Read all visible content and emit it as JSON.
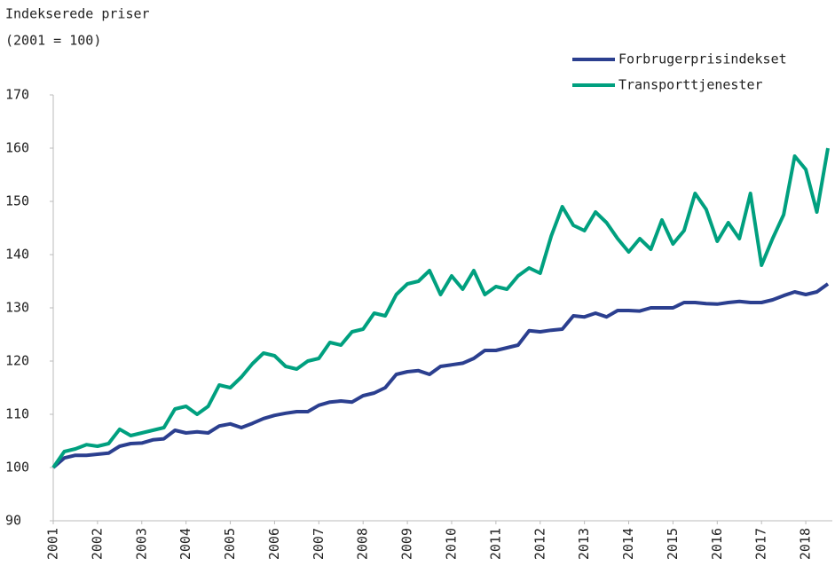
{
  "chart_data": {
    "type": "line",
    "title": "Indekserede priser",
    "subtitle": "(2001 = 100)",
    "x": [
      2001,
      2001.25,
      2001.5,
      2001.75,
      2002,
      2002.25,
      2002.5,
      2002.75,
      2003,
      2003.25,
      2003.5,
      2003.75,
      2004,
      2004.25,
      2004.5,
      2004.75,
      2005,
      2005.25,
      2005.5,
      2005.75,
      2006,
      2006.25,
      2006.5,
      2006.75,
      2007,
      2007.25,
      2007.5,
      2007.75,
      2008,
      2008.25,
      2008.5,
      2008.75,
      2009,
      2009.25,
      2009.5,
      2009.75,
      2010,
      2010.25,
      2010.5,
      2010.75,
      2011,
      2011.25,
      2011.5,
      2011.75,
      2012,
      2012.25,
      2012.5,
      2012.75,
      2013,
      2013.25,
      2013.5,
      2013.75,
      2014,
      2014.25,
      2014.5,
      2014.75,
      2015,
      2015.25,
      2015.5,
      2015.75,
      2016,
      2016.25,
      2016.5,
      2016.75,
      2017,
      2017.25,
      2017.5,
      2017.75,
      2018,
      2018.25,
      2018.5
    ],
    "series": [
      {
        "name": "Forbrugerprisindekset",
        "color": "#2b3f8f",
        "values": [
          100,
          101.8,
          102.3,
          102.3,
          102.5,
          102.7,
          104,
          104.5,
          104.6,
          105.2,
          105.4,
          107,
          106.5,
          106.7,
          106.5,
          107.8,
          108.2,
          107.5,
          108.3,
          109.2,
          109.8,
          110.2,
          110.5,
          110.5,
          111.7,
          112.3,
          112.5,
          112.3,
          113.5,
          114,
          115,
          117.5,
          118,
          118.2,
          117.5,
          119,
          119.3,
          119.6,
          120.5,
          122,
          122,
          122.5,
          123,
          125.7,
          125.5,
          125.8,
          126,
          128.5,
          128.3,
          129,
          128.3,
          129.5,
          129.5,
          129.4,
          130,
          130,
          130,
          131,
          131,
          130.8,
          130.7,
          131,
          131.2,
          131,
          131,
          131.5,
          132.3,
          133,
          132.5,
          133,
          134.5
        ]
      },
      {
        "name": "Transporttjenester",
        "color": "#00a07f",
        "values": [
          100,
          103,
          103.5,
          104.3,
          104,
          104.5,
          107.2,
          106,
          106.5,
          107,
          107.5,
          111,
          111.5,
          110,
          111.5,
          115.5,
          115,
          117,
          119.5,
          121.5,
          121,
          119,
          118.5,
          120,
          120.5,
          123.5,
          123,
          125.5,
          126,
          129,
          128.5,
          132.5,
          134.5,
          135,
          137,
          132.5,
          136,
          133.5,
          137,
          132.5,
          134,
          133.5,
          136,
          137.5,
          136.5,
          143.5,
          149,
          145.5,
          144.5,
          148,
          146,
          143,
          140.5,
          143,
          141,
          146.5,
          142,
          144.5,
          151.5,
          148.5,
          142.5,
          146,
          143,
          151.5,
          138,
          143,
          147.5,
          158.5,
          156,
          148,
          160
        ]
      }
    ],
    "xlim": [
      2001,
      2018.6
    ],
    "xticks": [
      2001,
      2002,
      2003,
      2004,
      2005,
      2006,
      2007,
      2008,
      2009,
      2010,
      2011,
      2012,
      2013,
      2014,
      2015,
      2016,
      2017,
      2018
    ],
    "ylim": [
      90,
      170
    ],
    "yticks": [
      90,
      100,
      110,
      120,
      130,
      140,
      150,
      160,
      170
    ],
    "legend": "top-right"
  }
}
